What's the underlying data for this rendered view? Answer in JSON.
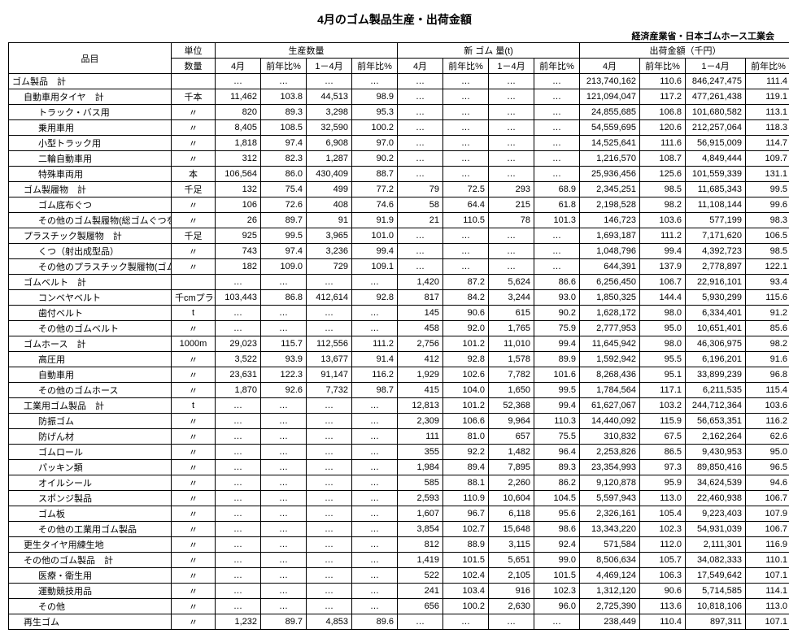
{
  "title": "4月のゴム製品生産・出荷金額",
  "source": "経済産業省・日本ゴムホース工業会",
  "head": {
    "item": "品目",
    "unit": "単位",
    "g_prod": "生産数量",
    "g_new": "新 ゴム 量(t)",
    "g_ship": "出荷金額（千円）",
    "sub_qty": "数量",
    "c_apr": "4月",
    "c_yoy": "前年比%",
    "c_14": "1－4月",
    "c_yoy2": "前年比%"
  },
  "dots": "…",
  "rows": [
    {
      "n": "ゴム製品　計",
      "i": 0,
      "u": "",
      "p": [
        "…",
        "…",
        "…",
        "…"
      ],
      "r": [
        "…",
        "…",
        "…",
        "…"
      ],
      "s": [
        "213,740,162",
        "110.6",
        "846,247,475",
        "111.4"
      ]
    },
    {
      "n": "自動車用タイヤ　計",
      "i": 1,
      "u": "千本",
      "p": [
        "11,462",
        "103.8",
        "44,513",
        "98.9"
      ],
      "r": [
        "…",
        "…",
        "…",
        "…"
      ],
      "s": [
        "121,094,047",
        "117.2",
        "477,261,438",
        "119.1"
      ]
    },
    {
      "n": "トラック・バス用",
      "i": 2,
      "u": "〃",
      "p": [
        "820",
        "89.3",
        "3,298",
        "95.3"
      ],
      "r": [
        "…",
        "…",
        "…",
        "…"
      ],
      "s": [
        "24,855,685",
        "106.8",
        "101,680,582",
        "113.1"
      ]
    },
    {
      "n": "乗用車用",
      "i": 2,
      "u": "〃",
      "p": [
        "8,405",
        "108.5",
        "32,590",
        "100.2"
      ],
      "r": [
        "…",
        "…",
        "…",
        "…"
      ],
      "s": [
        "54,559,695",
        "120.6",
        "212,257,064",
        "118.3"
      ]
    },
    {
      "n": "小型トラック用",
      "i": 2,
      "u": "〃",
      "p": [
        "1,818",
        "97.4",
        "6,908",
        "97.0"
      ],
      "r": [
        "…",
        "…",
        "…",
        "…"
      ],
      "s": [
        "14,525,641",
        "111.6",
        "56,915,009",
        "114.7"
      ]
    },
    {
      "n": "二輪自動車用",
      "i": 2,
      "u": "〃",
      "p": [
        "312",
        "82.3",
        "1,287",
        "90.2"
      ],
      "r": [
        "…",
        "…",
        "…",
        "…"
      ],
      "s": [
        "1,216,570",
        "108.7",
        "4,849,444",
        "109.7"
      ]
    },
    {
      "n": "特殊車両用",
      "i": 2,
      "u": "本",
      "p": [
        "106,564",
        "86.0",
        "430,409",
        "88.7"
      ],
      "r": [
        "…",
        "…",
        "…",
        "…"
      ],
      "s": [
        "25,936,456",
        "125.6",
        "101,559,339",
        "131.1"
      ]
    },
    {
      "n": "ゴム製履物　計",
      "i": 1,
      "u": "千足",
      "p": [
        "132",
        "75.4",
        "499",
        "77.2"
      ],
      "r": [
        "79",
        "72.5",
        "293",
        "68.9"
      ],
      "s": [
        "2,345,251",
        "98.5",
        "11,685,343",
        "99.5"
      ]
    },
    {
      "n": "ゴム底布ぐつ",
      "i": 2,
      "u": "〃",
      "p": [
        "106",
        "72.6",
        "408",
        "74.6"
      ],
      "r": [
        "58",
        "64.4",
        "215",
        "61.8"
      ],
      "s": [
        "2,198,528",
        "98.2",
        "11,108,144",
        "99.6"
      ]
    },
    {
      "n": "その他のゴム製履物(総ゴムぐつを含む)",
      "i": 2,
      "u": "〃",
      "p": [
        "26",
        "89.7",
        "91",
        "91.9"
      ],
      "r": [
        "21",
        "110.5",
        "78",
        "101.3"
      ],
      "s": [
        "146,723",
        "103.6",
        "577,199",
        "98.3"
      ]
    },
    {
      "n": "プラスチック製履物　計",
      "i": 1,
      "u": "千足",
      "p": [
        "925",
        "99.5",
        "3,965",
        "101.0"
      ],
      "r": [
        "…",
        "…",
        "…",
        "…"
      ],
      "s": [
        "1,693,187",
        "111.2",
        "7,171,620",
        "106.5"
      ]
    },
    {
      "n": "くつ（射出成型品）",
      "i": 2,
      "u": "〃",
      "p": [
        "743",
        "97.4",
        "3,236",
        "99.4"
      ],
      "r": [
        "…",
        "…",
        "…",
        "…"
      ],
      "s": [
        "1,048,796",
        "99.4",
        "4,392,723",
        "98.5"
      ]
    },
    {
      "n": "その他のプラスチック製履物(ゴム・プラ)",
      "i": 2,
      "u": "〃",
      "p": [
        "182",
        "109.0",
        "729",
        "109.1"
      ],
      "r": [
        "…",
        "…",
        "…",
        "…"
      ],
      "s": [
        "644,391",
        "137.9",
        "2,778,897",
        "122.1"
      ]
    },
    {
      "n": "ゴムベルト　計",
      "i": 1,
      "u": "",
      "p": [
        "…",
        "…",
        "…",
        "…"
      ],
      "r": [
        "1,420",
        "87.2",
        "5,624",
        "86.6"
      ],
      "s": [
        "6,256,450",
        "106.7",
        "22,916,101",
        "93.4"
      ]
    },
    {
      "n": "コンベヤベルト",
      "i": 2,
      "u": "千cmプライ",
      "p": [
        "103,443",
        "86.8",
        "412,614",
        "92.8"
      ],
      "r": [
        "817",
        "84.2",
        "3,244",
        "93.0"
      ],
      "s": [
        "1,850,325",
        "144.4",
        "5,930,299",
        "115.6"
      ]
    },
    {
      "n": "歯付ベルト",
      "i": 2,
      "u": "t",
      "p": [
        "…",
        "…",
        "…",
        "…"
      ],
      "r": [
        "145",
        "90.6",
        "615",
        "90.2"
      ],
      "s": [
        "1,628,172",
        "98.0",
        "6,334,401",
        "91.2"
      ]
    },
    {
      "n": "その他のゴムベルト",
      "i": 2,
      "u": "〃",
      "p": [
        "…",
        "…",
        "…",
        "…"
      ],
      "r": [
        "458",
        "92.0",
        "1,765",
        "75.9"
      ],
      "s": [
        "2,777,953",
        "95.0",
        "10,651,401",
        "85.6"
      ]
    },
    {
      "n": "ゴムホース　計",
      "i": 1,
      "u": "1000m",
      "p": [
        "29,023",
        "115.7",
        "112,556",
        "111.2"
      ],
      "r": [
        "2,756",
        "101.2",
        "11,010",
        "99.4"
      ],
      "s": [
        "11,645,942",
        "98.0",
        "46,306,975",
        "98.2"
      ]
    },
    {
      "n": "高圧用",
      "i": 2,
      "u": "〃",
      "p": [
        "3,522",
        "93.9",
        "13,677",
        "91.4"
      ],
      "r": [
        "412",
        "92.8",
        "1,578",
        "89.9"
      ],
      "s": [
        "1,592,942",
        "95.5",
        "6,196,201",
        "91.6"
      ]
    },
    {
      "n": "自動車用",
      "i": 2,
      "u": "〃",
      "p": [
        "23,631",
        "122.3",
        "91,147",
        "116.2"
      ],
      "r": [
        "1,929",
        "102.6",
        "7,782",
        "101.6"
      ],
      "s": [
        "8,268,436",
        "95.1",
        "33,899,239",
        "96.8"
      ]
    },
    {
      "n": "その他のゴムホース",
      "i": 2,
      "u": "〃",
      "p": [
        "1,870",
        "92.6",
        "7,732",
        "98.7"
      ],
      "r": [
        "415",
        "104.0",
        "1,650",
        "99.5"
      ],
      "s": [
        "1,784,564",
        "117.1",
        "6,211,535",
        "115.4"
      ]
    },
    {
      "n": "工業用ゴム製品　計",
      "i": 1,
      "u": "t",
      "p": [
        "…",
        "…",
        "…",
        "…"
      ],
      "r": [
        "12,813",
        "101.2",
        "52,368",
        "99.4"
      ],
      "s": [
        "61,627,067",
        "103.2",
        "244,712,364",
        "103.6"
      ]
    },
    {
      "n": "防振ゴム",
      "i": 2,
      "u": "〃",
      "p": [
        "…",
        "…",
        "…",
        "…"
      ],
      "r": [
        "2,309",
        "106.6",
        "9,964",
        "110.3"
      ],
      "s": [
        "14,440,092",
        "115.9",
        "56,653,351",
        "116.2"
      ]
    },
    {
      "n": "防げん材",
      "i": 2,
      "u": "〃",
      "p": [
        "…",
        "…",
        "…",
        "…"
      ],
      "r": [
        "111",
        "81.0",
        "657",
        "75.5"
      ],
      "s": [
        "310,832",
        "67.5",
        "2,162,264",
        "62.6"
      ]
    },
    {
      "n": "ゴムロール",
      "i": 2,
      "u": "〃",
      "p": [
        "…",
        "…",
        "…",
        "…"
      ],
      "r": [
        "355",
        "92.2",
        "1,482",
        "96.4"
      ],
      "s": [
        "2,253,826",
        "86.5",
        "9,430,953",
        "95.0"
      ]
    },
    {
      "n": "パッキン類",
      "i": 2,
      "u": "〃",
      "p": [
        "…",
        "…",
        "…",
        "…"
      ],
      "r": [
        "1,984",
        "89.4",
        "7,895",
        "89.3"
      ],
      "s": [
        "23,354,993",
        "97.3",
        "89,850,416",
        "96.5"
      ]
    },
    {
      "n": "オイルシール",
      "i": 2,
      "u": "〃",
      "p": [
        "…",
        "…",
        "…",
        "…"
      ],
      "r": [
        "585",
        "88.1",
        "2,260",
        "86.2"
      ],
      "s": [
        "9,120,878",
        "95.9",
        "34,624,539",
        "94.6"
      ]
    },
    {
      "n": "スポンジ製品",
      "i": 2,
      "u": "〃",
      "p": [
        "…",
        "…",
        "…",
        "…"
      ],
      "r": [
        "2,593",
        "110.9",
        "10,604",
        "104.5"
      ],
      "s": [
        "5,597,943",
        "113.0",
        "22,460,938",
        "106.7"
      ]
    },
    {
      "n": "ゴム板",
      "i": 2,
      "u": "〃",
      "p": [
        "…",
        "…",
        "…",
        "…"
      ],
      "r": [
        "1,607",
        "96.7",
        "6,118",
        "95.6"
      ],
      "s": [
        "2,326,161",
        "105.4",
        "9,223,403",
        "107.9"
      ]
    },
    {
      "n": "その他の工業用ゴム製品",
      "i": 2,
      "u": "〃",
      "p": [
        "…",
        "…",
        "…",
        "…"
      ],
      "r": [
        "3,854",
        "102.7",
        "15,648",
        "98.6"
      ],
      "s": [
        "13,343,220",
        "102.3",
        "54,931,039",
        "106.7"
      ]
    },
    {
      "n": "更生タイヤ用練生地",
      "i": 1,
      "u": "〃",
      "p": [
        "…",
        "…",
        "…",
        "…"
      ],
      "r": [
        "812",
        "88.9",
        "3,115",
        "92.4"
      ],
      "s": [
        "571,584",
        "112.0",
        "2,111,301",
        "116.9"
      ]
    },
    {
      "n": "その他のゴム製品　計",
      "i": 1,
      "u": "〃",
      "p": [
        "…",
        "…",
        "…",
        "…"
      ],
      "r": [
        "1,419",
        "101.5",
        "5,651",
        "99.0"
      ],
      "s": [
        "8,506,634",
        "105.7",
        "34,082,333",
        "110.1"
      ]
    },
    {
      "n": "医療・衛生用",
      "i": 2,
      "u": "〃",
      "p": [
        "…",
        "…",
        "…",
        "…"
      ],
      "r": [
        "522",
        "102.4",
        "2,105",
        "101.5"
      ],
      "s": [
        "4,469,124",
        "106.3",
        "17,549,642",
        "107.1"
      ]
    },
    {
      "n": "運動競技用品",
      "i": 2,
      "u": "〃",
      "p": [
        "…",
        "…",
        "…",
        "…"
      ],
      "r": [
        "241",
        "103.4",
        "916",
        "102.3"
      ],
      "s": [
        "1,312,120",
        "90.6",
        "5,714,585",
        "114.1"
      ]
    },
    {
      "n": "その他",
      "i": 2,
      "u": "〃",
      "p": [
        "…",
        "…",
        "…",
        "…"
      ],
      "r": [
        "656",
        "100.2",
        "2,630",
        "96.0"
      ],
      "s": [
        "2,725,390",
        "113.6",
        "10,818,106",
        "113.0"
      ]
    },
    {
      "n": "再生ゴム",
      "i": 1,
      "u": "〃",
      "p": [
        "1,232",
        "89.7",
        "4,853",
        "89.6"
      ],
      "r": [
        "…",
        "…",
        "…",
        "…"
      ],
      "s": [
        "238,449",
        "110.4",
        "897,311",
        "107.1"
      ]
    }
  ]
}
